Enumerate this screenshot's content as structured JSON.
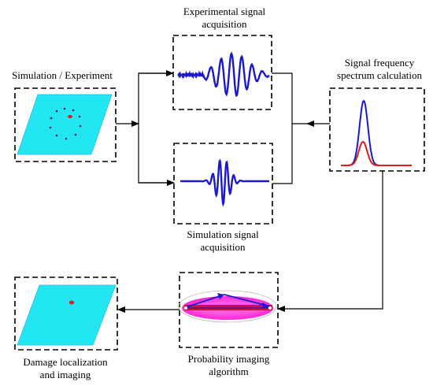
{
  "labels": {
    "experimental_line1": "Experimental signal",
    "experimental_line2": "acquisition",
    "simulation_experiment": "Simulation / Experiment",
    "spectrum_line1": "Signal frequency",
    "spectrum_line2": "spectrum calculation",
    "simulation_line1": "Simulation signal",
    "simulation_line2": "acquisition",
    "damage_line1": "Damage localization",
    "damage_line2": "and imaging",
    "probability_line1": "Probability imaging",
    "probability_line2": "algorithm"
  },
  "colors": {
    "plate": "#22e6f2",
    "plate_edge": "#2fb8e0",
    "signal": "#1a1acc",
    "spectrum_red": "#e01c1c",
    "damage": "#e01c1c",
    "ellipse_fill": "#ff2ad8",
    "ellipse_core": "#c8143a",
    "arrow": "#000000"
  },
  "icons": [
    "plate-icon",
    "signal-waveform-icon",
    "spectrum-peak-icon",
    "ellipse-imaging-icon"
  ]
}
